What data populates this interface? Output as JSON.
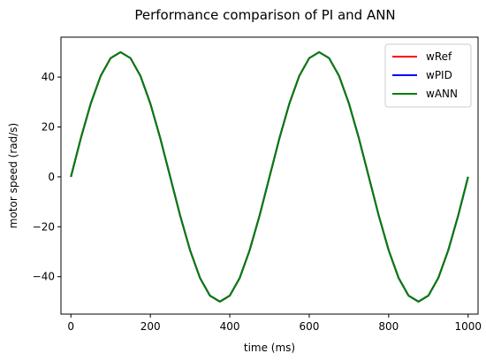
{
  "chart_data": {
    "type": "line",
    "title": "Performance comparison of PI and ANN",
    "xlabel": "time (ms)",
    "ylabel": "motor speed (rad/s)",
    "xlim": [
      -25,
      1025
    ],
    "ylim": [
      -55,
      56
    ],
    "xticks": [
      0,
      200,
      400,
      600,
      800,
      1000
    ],
    "yticks": [
      -40,
      -20,
      0,
      20,
      40
    ],
    "xtick_labels": [
      "0",
      "200",
      "400",
      "600",
      "800",
      "1000"
    ],
    "ytick_labels": [
      "−40",
      "−20",
      "0",
      "20",
      "40"
    ],
    "grid": false,
    "legend_position": "top-right",
    "series": [
      {
        "name": "wRef",
        "color": "#ff0000",
        "x": [
          0,
          25,
          50,
          75,
          100,
          125,
          150,
          175,
          200,
          225,
          250,
          275,
          300,
          325,
          350,
          375,
          400,
          425,
          450,
          475,
          500,
          525,
          550,
          575,
          600,
          625,
          650,
          675,
          700,
          725,
          750,
          775,
          800,
          825,
          850,
          875,
          900,
          925,
          950,
          975,
          1000
        ],
        "y": [
          0,
          15.5,
          29.4,
          40.5,
          47.6,
          50.0,
          47.6,
          40.5,
          29.4,
          15.5,
          0,
          -15.5,
          -29.4,
          -40.5,
          -47.6,
          -50.0,
          -47.6,
          -40.5,
          -29.4,
          -15.5,
          0,
          15.5,
          29.4,
          40.5,
          47.6,
          50.0,
          47.6,
          40.5,
          29.4,
          15.5,
          0,
          -15.5,
          -29.4,
          -40.5,
          -47.6,
          -50.0,
          -47.6,
          -40.5,
          -29.4,
          -15.5,
          0
        ]
      },
      {
        "name": "wPID",
        "color": "#0000ff",
        "x": [
          0,
          25,
          50,
          75,
          100,
          125,
          150,
          175,
          200,
          225,
          250,
          275,
          300,
          325,
          350,
          375,
          400,
          425,
          450,
          475,
          500,
          525,
          550,
          575,
          600,
          625,
          650,
          675,
          700,
          725,
          750,
          775,
          800,
          825,
          850,
          875,
          900,
          925,
          950,
          975,
          1000
        ],
        "y": [
          0,
          15.5,
          29.4,
          40.5,
          47.6,
          50.0,
          47.6,
          40.5,
          29.4,
          15.5,
          0,
          -15.5,
          -29.4,
          -40.5,
          -47.6,
          -50.0,
          -47.6,
          -40.5,
          -29.4,
          -15.5,
          0,
          15.5,
          29.4,
          40.5,
          47.6,
          50.0,
          47.6,
          40.5,
          29.4,
          15.5,
          0,
          -15.5,
          -29.4,
          -40.5,
          -47.6,
          -50.0,
          -47.6,
          -40.5,
          -29.4,
          -15.5,
          0
        ]
      },
      {
        "name": "wANN",
        "color": "#008000",
        "x": [
          0,
          25,
          50,
          75,
          100,
          125,
          150,
          175,
          200,
          225,
          250,
          275,
          300,
          325,
          350,
          375,
          400,
          425,
          450,
          475,
          500,
          525,
          550,
          575,
          600,
          625,
          650,
          675,
          700,
          725,
          750,
          775,
          800,
          825,
          850,
          875,
          900,
          925,
          950,
          975,
          1000
        ],
        "y": [
          0,
          15.5,
          29.4,
          40.5,
          47.6,
          50.0,
          47.6,
          40.5,
          29.4,
          15.5,
          0,
          -15.5,
          -29.4,
          -40.5,
          -47.6,
          -50.0,
          -47.6,
          -40.5,
          -29.4,
          -15.5,
          0,
          15.5,
          29.4,
          40.5,
          47.6,
          50.0,
          47.6,
          40.5,
          29.4,
          15.5,
          0,
          -15.5,
          -29.4,
          -40.5,
          -47.6,
          -50.0,
          -47.6,
          -40.5,
          -29.4,
          -15.5,
          0
        ]
      }
    ]
  }
}
